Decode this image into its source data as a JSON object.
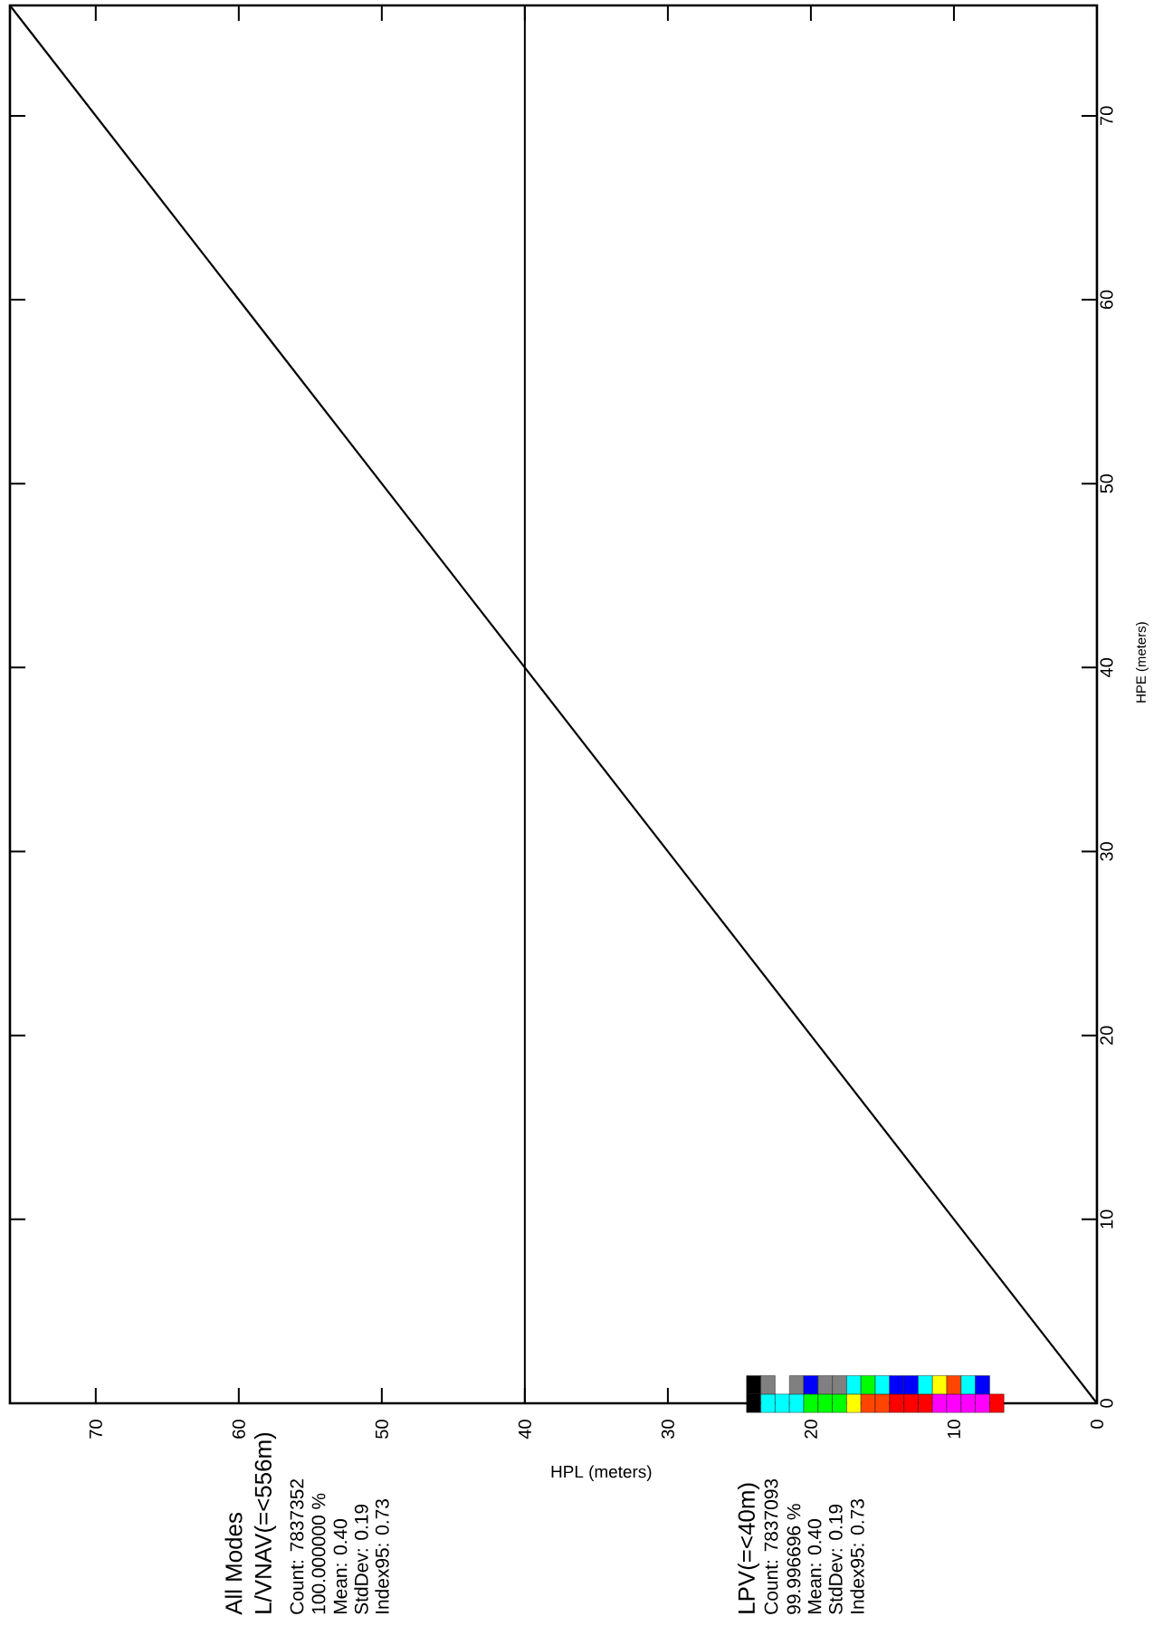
{
  "chart_data": {
    "type": "scatter",
    "xlabel": "HPL (meters)",
    "ylabel": "HPE (meters)",
    "xlim": [
      76,
      0
    ],
    "ylim": [
      0,
      76
    ],
    "xticks": [
      0,
      10,
      20,
      30,
      40,
      50,
      60,
      70
    ],
    "yticks": [
      0,
      10,
      20,
      30,
      40,
      50,
      60,
      70
    ],
    "series": [
      {
        "type": "line",
        "color": "#000000",
        "x": [
          0,
          76
        ],
        "values": [
          0,
          76
        ]
      },
      {
        "marker": "square",
        "x": [
          24,
          23,
          22,
          21,
          20,
          19,
          18,
          17,
          16,
          15,
          14,
          13,
          12,
          11,
          10,
          9,
          8,
          7
        ],
        "values": [
          0,
          0,
          0,
          0,
          0,
          0,
          0,
          0,
          0,
          0,
          0,
          0,
          0,
          0,
          0,
          0,
          0,
          0
        ],
        "colors": [
          "#000000",
          "#00ffff",
          "#00ffff",
          "#00ffff",
          "#00ff00",
          "#00ff00",
          "#00ff00",
          "#ffff00",
          "#ff4500",
          "#ff4500",
          "#ff0000",
          "#ff0000",
          "#ff0000",
          "#ff00ff",
          "#ff00ff",
          "#ff00ff",
          "#ff00ff",
          "#ff0000"
        ]
      },
      {
        "marker": "square",
        "x": [
          24,
          23,
          21,
          20,
          19,
          18,
          17,
          16,
          15,
          14,
          13,
          12,
          11,
          10,
          9,
          8
        ],
        "values": [
          1,
          1,
          1,
          1,
          1,
          1,
          1,
          1,
          1,
          1,
          1,
          1,
          1,
          1,
          1,
          1
        ],
        "colors": [
          "#000000",
          "#808080",
          "#808080",
          "#0000ff",
          "#808080",
          "#808080",
          "#00ffff",
          "#00ff00",
          "#00ffff",
          "#0000ff",
          "#0000ff",
          "#00ffff",
          "#ffff00",
          "#ff4500",
          "#00ffff",
          "#0000ff"
        ]
      }
    ],
    "ref_lines": [
      {
        "axis": "x",
        "value": 40,
        "color": "#000000"
      }
    ],
    "annotations": [
      "All Modes",
      "L/VNAV(=<556m)",
      "Count: 7837352",
      "100.000000 %",
      "Mean: 0.40",
      "StdDev: 0.19",
      "Index95: 0.73",
      "LPV(=<40m)",
      "Count: 7837093",
      "99.996696 %",
      "Mean: 0.40",
      "StdDev: 0.19",
      "Index95: 0.73"
    ]
  }
}
